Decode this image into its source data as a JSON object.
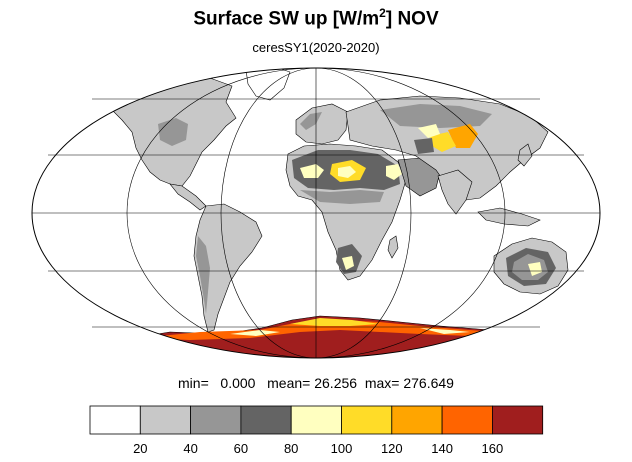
{
  "title": {
    "main": "Surface SW up [W/m",
    "sup": "2",
    "tail": "]  NOV"
  },
  "subtitle": "ceresSY1(2020-2020)",
  "stats": {
    "min_label": "min=",
    "min_value": "0.000",
    "mean_label": "mean=",
    "mean_value": "26.256",
    "max_label": "max=",
    "max_value": "276.649"
  },
  "colorbar": {
    "levels": [
      "20",
      "40",
      "60",
      "80",
      "100",
      "120",
      "140",
      "160"
    ],
    "colors": [
      "#ffffff",
      "#c8c8c8",
      "#969696",
      "#646464",
      "#ffffc0",
      "#ffdc28",
      "#ffa500",
      "#ff6400",
      "#a01e1e"
    ]
  },
  "map": {
    "projection": "Mollweide",
    "colors": {
      "land_low": "#c8c8c8",
      "land_mid": "#969696",
      "land_high": "#646464",
      "yellow_light": "#ffffc0",
      "yellow": "#ffdc28",
      "orange": "#ffa500",
      "dark_orange": "#ff6400",
      "dark_red": "#a01e1e",
      "coastline": "#000000",
      "grid": "#000000"
    }
  }
}
